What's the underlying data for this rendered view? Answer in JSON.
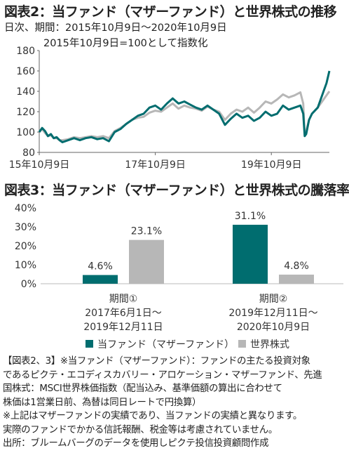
{
  "figure2": {
    "title": "図表2：当ファンド（マザーファンド）と世界株式の推移",
    "period_line": "日次、期間：2015年10月9日～2020年10月9日",
    "index_note": "2015年10月9日=100として指数化"
  },
  "figure3": {
    "title": "図表3：当ファンド（マザーファンド）と世界株式の騰落率"
  },
  "colors": {
    "fund": "#006d6f",
    "world": "#b7b7b7"
  },
  "chart_data": [
    {
      "type": "line",
      "title": "図表2：当ファンド（マザーファンド）と世界株式の推移",
      "ylim": [
        80,
        180
      ],
      "y_ticks": [
        "80",
        "100",
        "120",
        "140",
        "160",
        "180"
      ],
      "x_ticks": [
        "15年10月9日",
        "17年10月9日",
        "19年10月9日"
      ],
      "x_tick_positions": [
        0.0,
        0.4,
        0.8
      ],
      "x_domain": [
        0,
        1
      ],
      "grid": false,
      "series": [
        {
          "name": "当ファンド（マザーファンド）",
          "color": "#006d6f",
          "x": [
            0,
            0.01,
            0.02,
            0.03,
            0.04,
            0.05,
            0.06,
            0.07,
            0.08,
            0.1,
            0.12,
            0.14,
            0.16,
            0.18,
            0.2,
            0.22,
            0.24,
            0.26,
            0.28,
            0.3,
            0.32,
            0.34,
            0.36,
            0.38,
            0.4,
            0.42,
            0.44,
            0.46,
            0.48,
            0.5,
            0.52,
            0.54,
            0.56,
            0.58,
            0.6,
            0.62,
            0.64,
            0.66,
            0.68,
            0.7,
            0.72,
            0.74,
            0.76,
            0.78,
            0.8,
            0.82,
            0.84,
            0.86,
            0.88,
            0.9,
            0.91,
            0.915,
            0.92,
            0.93,
            0.94,
            0.96,
            0.98,
            0.99,
            1.0
          ],
          "values": [
            100,
            104,
            101,
            96,
            98,
            94,
            95,
            92,
            90,
            92,
            94,
            92,
            94,
            95,
            93,
            94,
            91,
            100,
            103,
            108,
            112,
            116,
            118,
            124,
            126,
            122,
            128,
            133,
            128,
            130,
            127,
            124,
            122,
            126,
            122,
            118,
            107,
            113,
            118,
            114,
            116,
            111,
            114,
            120,
            116,
            118,
            126,
            122,
            124,
            126,
            118,
            96,
            98,
            112,
            118,
            124,
            140,
            148,
            160
          ]
        },
        {
          "name": "世界株式",
          "color": "#b7b7b7",
          "x": [
            0,
            0.01,
            0.02,
            0.03,
            0.04,
            0.05,
            0.06,
            0.07,
            0.08,
            0.1,
            0.12,
            0.14,
            0.16,
            0.18,
            0.2,
            0.22,
            0.24,
            0.26,
            0.28,
            0.3,
            0.32,
            0.34,
            0.36,
            0.38,
            0.4,
            0.42,
            0.44,
            0.46,
            0.48,
            0.5,
            0.52,
            0.54,
            0.56,
            0.58,
            0.6,
            0.62,
            0.64,
            0.66,
            0.68,
            0.7,
            0.72,
            0.74,
            0.76,
            0.78,
            0.8,
            0.82,
            0.84,
            0.86,
            0.88,
            0.9,
            0.91,
            0.915,
            0.92,
            0.93,
            0.94,
            0.96,
            0.98,
            0.99,
            1.0
          ],
          "values": [
            100,
            103,
            99,
            96,
            97,
            94,
            94,
            92,
            92,
            93,
            95,
            94,
            95,
            96,
            95,
            96,
            94,
            101,
            104,
            108,
            112,
            114,
            115,
            119,
            121,
            120,
            124,
            128,
            123,
            126,
            124,
            123,
            121,
            125,
            122,
            120,
            112,
            118,
            122,
            120,
            124,
            119,
            124,
            130,
            128,
            132,
            137,
            134,
            136,
            139,
            128,
            97,
            101,
            112,
            118,
            124,
            132,
            136,
            140
          ]
        }
      ]
    },
    {
      "type": "bar",
      "title": "図表3：当ファンド（マザーファンド）と世界株式の騰落率",
      "ylim": [
        0,
        40
      ],
      "y_ticks": [
        "0%",
        "10%",
        "20%",
        "30%",
        "40%"
      ],
      "categories": [
        {
          "name": "期間①",
          "line1": "2017年6月1日～",
          "line2": "2019年12月11日"
        },
        {
          "name": "期間②",
          "line1": "2019年12月11日～",
          "line2": "2020年10月9日"
        }
      ],
      "series": [
        {
          "name": "当ファンド（マザーファンド）",
          "color": "#006d6f",
          "values": [
            4.6,
            31.1
          ],
          "labels": [
            "4.6%",
            "31.1%"
          ]
        },
        {
          "name": "世界株式",
          "color": "#b7b7b7",
          "values": [
            23.1,
            4.8
          ],
          "labels": [
            "23.1%",
            "4.8%"
          ]
        }
      ],
      "legend": "bottom"
    }
  ],
  "footnotes": [
    "【図表2、3】※当ファンド（マザーファンド）：ファンドの主たる投資対象",
    "であるピクテ・エコディスカバリー・アロケーション・マザーファンド、先進",
    "国株式：MSCI世界株価指数（配当込み、基準価額の算出に合わせて",
    "株価は1営業日前、為替は同日レートで円換算）",
    "※上記はマザーファンドの実績であり、当ファンドの実績と異なります。",
    "実際のファンドでかかる信託報酬、税金等は考慮されていません。",
    "出所：ブルームバーグのデータを使用しピクテ投信投資顧問作成"
  ]
}
